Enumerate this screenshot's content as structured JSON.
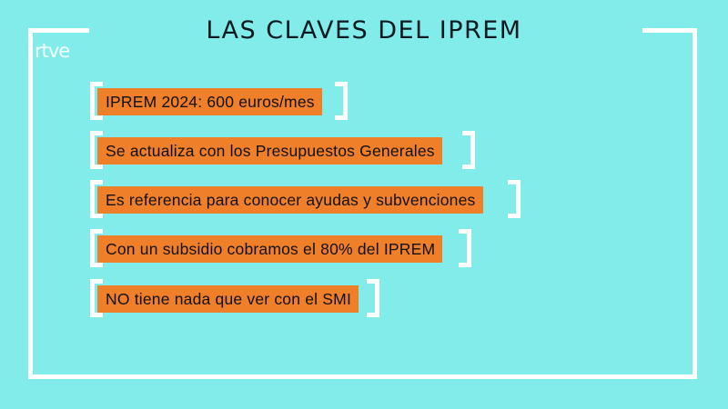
{
  "title": "LAS CLAVES DEL IPREM",
  "logo": "rtve",
  "colors": {
    "background": "#82ecea",
    "box": "#f07f2a",
    "frame": "#ffffff"
  },
  "items": [
    {
      "text": "IPREM 2024: 600 euros/mes"
    },
    {
      "text": "Se actualiza con los Presupuestos Generales"
    },
    {
      "text": "Es referencia para conocer ayudas y subvenciones"
    },
    {
      "text": "Con un subsidio cobramos el 80% del IPREM"
    },
    {
      "text": "NO tiene nada que ver con el SMI"
    }
  ]
}
